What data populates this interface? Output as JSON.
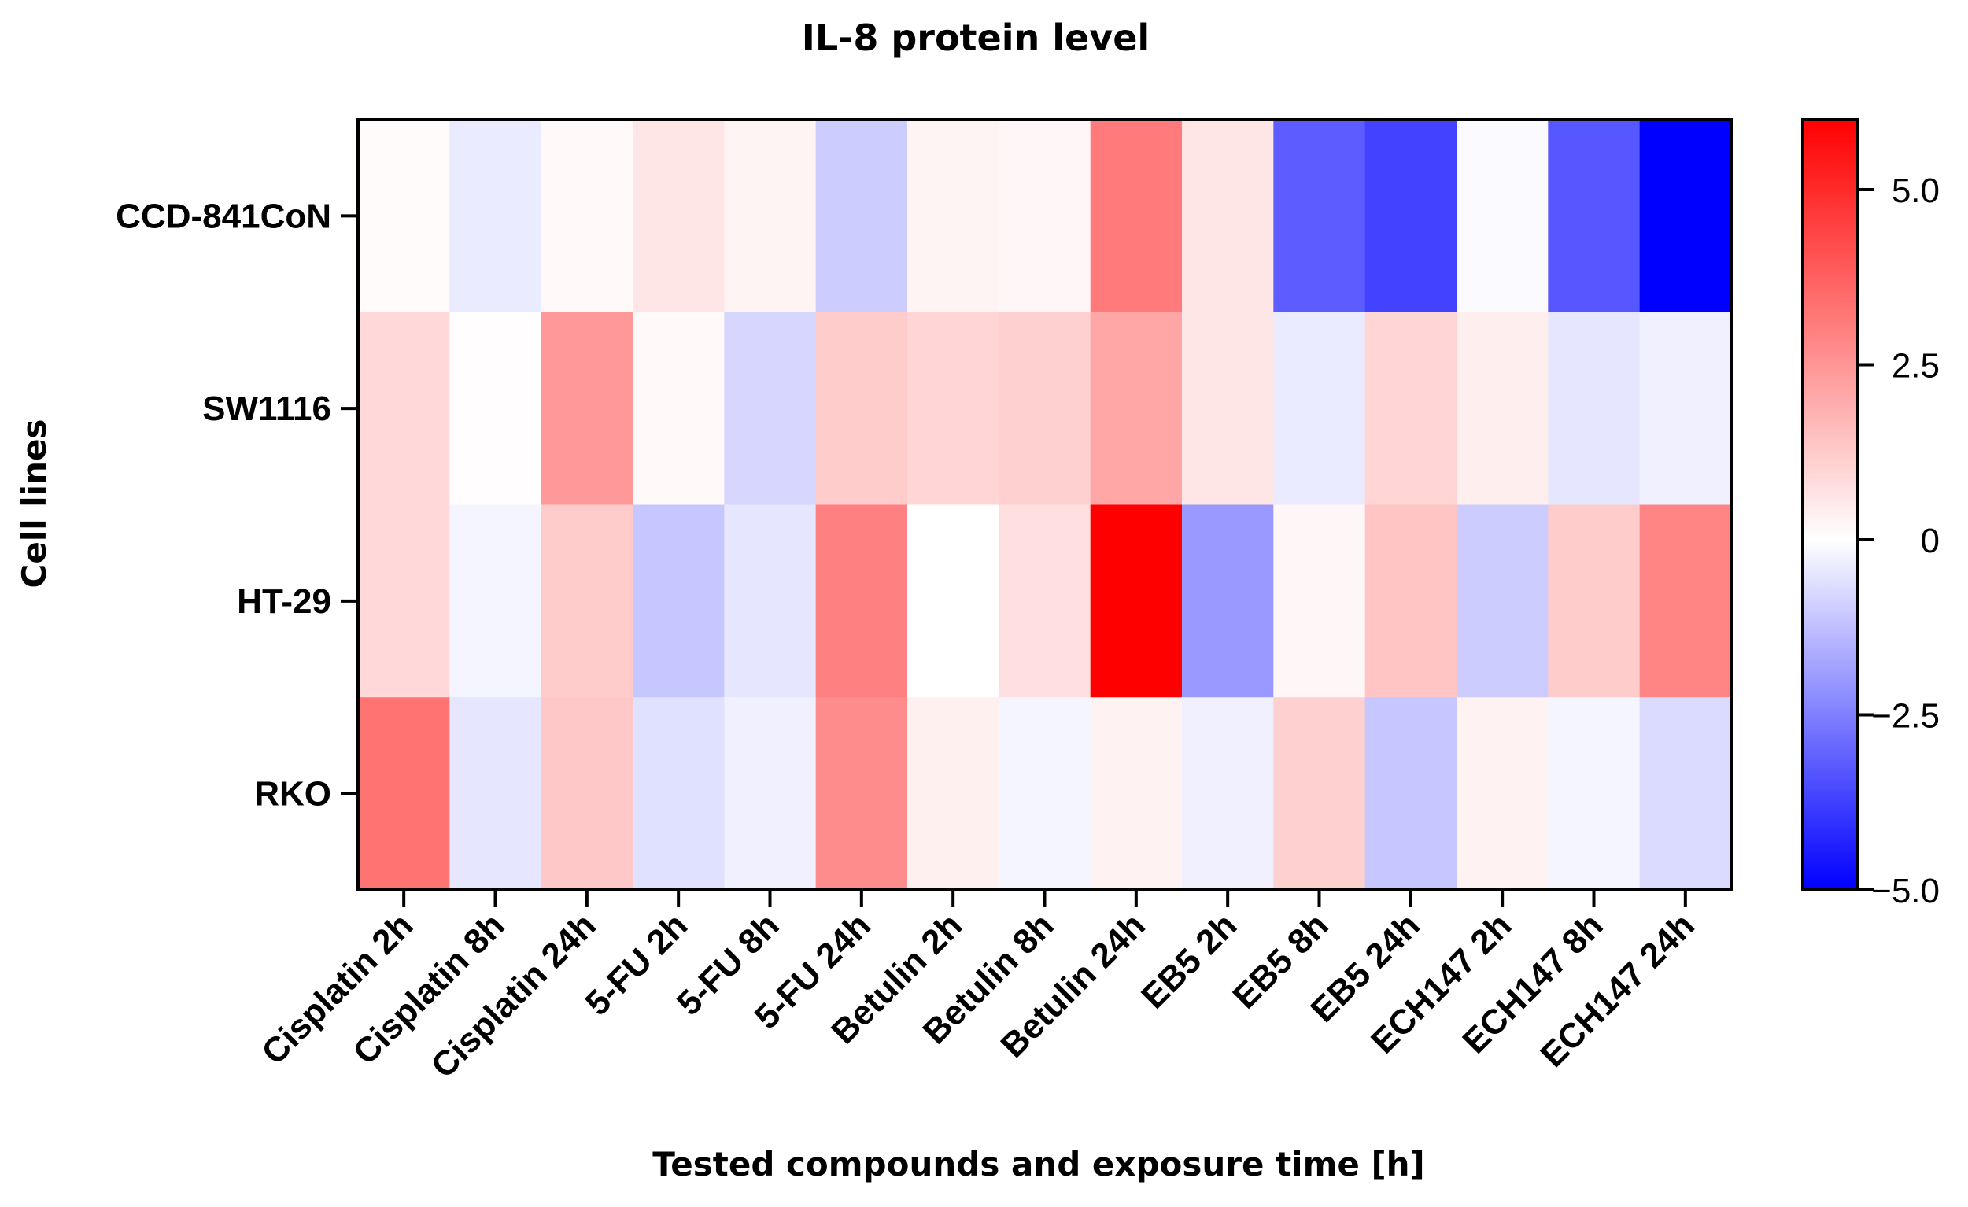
{
  "chart_data": {
    "type": "heatmap",
    "title": "IL-8 protein level",
    "xlabel": "Tested compounds and exposure time [h]",
    "ylabel": "Cell lines",
    "columns": [
      "Cisplatin 2h",
      "Cisplatin 8h",
      "Cisplatin 24h",
      "5-FU 2h",
      "5-FU 8h",
      "5-FU 24h",
      "Betulin 2h",
      "Betulin 8h",
      "Betulin 24h",
      "EB5 2h",
      "EB5 8h",
      "EB5 24h",
      "ECH147 2h",
      "ECH147 8h",
      "ECH147 24h"
    ],
    "rows": [
      "CCD-841CoN",
      "SW1116",
      "HT-29",
      "RKO"
    ],
    "values": [
      [
        0.1,
        -0.4,
        0.15,
        0.6,
        0.25,
        -1.0,
        0.25,
        0.2,
        3.1,
        0.6,
        -3.2,
        -3.7,
        -0.1,
        -3.3,
        -5.0
      ],
      [
        0.9,
        0.05,
        2.4,
        0.15,
        -0.8,
        1.2,
        1.0,
        1.1,
        2.1,
        0.6,
        -0.4,
        1.0,
        0.4,
        -0.5,
        -0.3
      ],
      [
        0.9,
        -0.2,
        1.2,
        -1.1,
        -0.5,
        3.0,
        0.0,
        0.75,
        6.0,
        -2.0,
        0.2,
        1.4,
        -1.0,
        1.2,
        2.9
      ],
      [
        3.3,
        -0.5,
        1.3,
        -0.6,
        -0.3,
        2.7,
        0.35,
        -0.2,
        0.3,
        -0.3,
        1.1,
        -1.1,
        0.3,
        -0.2,
        -0.7
      ]
    ],
    "colorbar": {
      "min": -5.0,
      "max": 6.0,
      "ticks": [
        5.0,
        2.5,
        0,
        -2.5,
        -5.0
      ],
      "tick_labels": [
        "5.0",
        "2.5",
        "0",
        "−2.5",
        "−5.0"
      ],
      "low_color": "#0000ff",
      "mid_color": "#ffffff",
      "high_color": "#ff0000"
    }
  }
}
